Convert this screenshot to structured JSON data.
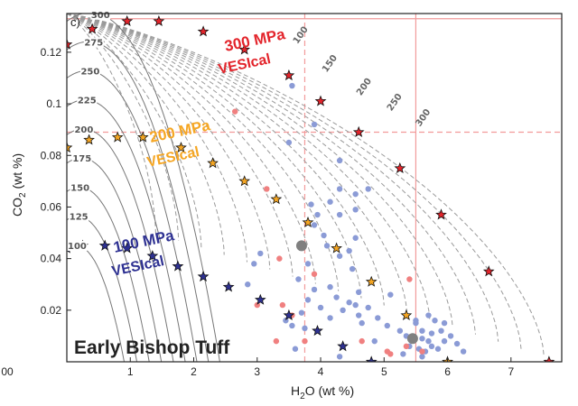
{
  "chart_data": {
    "type": "scatter",
    "panel_label": "c)",
    "title": "Early Bishop Tuff",
    "xlabel": {
      "main": "H",
      "sub": "2",
      "rest": "O (wt %)"
    },
    "ylabel": {
      "main": "CO",
      "sub": "2",
      "rest": " (wt %)"
    },
    "xlim": [
      0,
      7.8
    ],
    "ylim": [
      0,
      0.135
    ],
    "xticks": [
      0,
      1,
      2,
      3,
      4,
      5,
      6,
      7
    ],
    "xtick_labels": [
      "00",
      "1",
      "2",
      "3",
      "4",
      "5",
      "6",
      "7"
    ],
    "yticks": [
      0.02,
      0.04,
      0.06,
      0.08,
      0.1,
      0.12
    ],
    "ytick_labels": [
      "0.02",
      "0.04",
      "0.06",
      "0.08",
      "0.1",
      "0.12"
    ],
    "isobars": [
      {
        "label": "100",
        "P": 100
      },
      {
        "label": "125",
        "P": 125
      },
      {
        "label": "150",
        "P": 150
      },
      {
        "label": "175",
        "P": 175
      },
      {
        "label": "200",
        "P": 200
      },
      {
        "label": "225",
        "P": 225
      },
      {
        "label": "250",
        "P": 250
      },
      {
        "label": "275",
        "P": 275
      },
      {
        "label": "300",
        "P": 300
      }
    ],
    "isopleth_labels": [
      "100",
      "150",
      "200",
      "250",
      "300"
    ],
    "vesical_series": [
      {
        "name": "300 MPa",
        "name2": "VESIcal",
        "color": "#e3242b",
        "points": [
          [
            0.0,
            0.123
          ],
          [
            0.4,
            0.129
          ],
          [
            0.95,
            0.132
          ],
          [
            1.45,
            0.132
          ],
          [
            2.15,
            0.128
          ],
          [
            2.8,
            0.121
          ],
          [
            3.5,
            0.111
          ],
          [
            4.0,
            0.101
          ],
          [
            4.6,
            0.089
          ],
          [
            5.25,
            0.075
          ],
          [
            5.9,
            0.057
          ],
          [
            6.65,
            0.035
          ],
          [
            7.6,
            0.0
          ]
        ]
      },
      {
        "name": "200 MPa",
        "name2": "VESIcal",
        "color": "#f5a623",
        "points": [
          [
            0.0,
            0.083
          ],
          [
            0.35,
            0.086
          ],
          [
            0.8,
            0.087
          ],
          [
            1.2,
            0.087
          ],
          [
            1.8,
            0.083
          ],
          [
            2.3,
            0.077
          ],
          [
            2.8,
            0.07
          ],
          [
            3.3,
            0.063
          ],
          [
            3.8,
            0.054
          ],
          [
            4.25,
            0.044
          ],
          [
            4.8,
            0.031
          ],
          [
            5.35,
            0.018
          ],
          [
            6.0,
            0.0
          ]
        ]
      },
      {
        "name": "100 MPa",
        "name2": "VESIcal",
        "color": "#2e3192",
        "points": [
          [
            0.0,
            0.044
          ],
          [
            0.25,
            0.045
          ],
          [
            0.6,
            0.045
          ],
          [
            0.95,
            0.044
          ],
          [
            1.35,
            0.041
          ],
          [
            1.75,
            0.037
          ],
          [
            2.15,
            0.033
          ],
          [
            2.55,
            0.029
          ],
          [
            3.05,
            0.024
          ],
          [
            3.5,
            0.018
          ],
          [
            3.95,
            0.012
          ],
          [
            4.35,
            0.006
          ],
          [
            4.8,
            0.0
          ]
        ]
      }
    ],
    "melt_inclusions_blue": {
      "color": "#8b9bd6",
      "points": [
        [
          3.5,
          0.085
        ],
        [
          3.55,
          0.107
        ],
        [
          3.9,
          0.092
        ],
        [
          4.3,
          0.078
        ],
        [
          3.85,
          0.061
        ],
        [
          3.95,
          0.057
        ],
        [
          4.15,
          0.062
        ],
        [
          4.3,
          0.057
        ],
        [
          4.55,
          0.059
        ],
        [
          4.55,
          0.065
        ],
        [
          4.75,
          0.067
        ],
        [
          4.3,
          0.067
        ],
        [
          3.9,
          0.053
        ],
        [
          4.05,
          0.049
        ],
        [
          4.1,
          0.045
        ],
        [
          4.45,
          0.043
        ],
        [
          4.55,
          0.048
        ],
        [
          3.8,
          0.038
        ],
        [
          4.3,
          0.041
        ],
        [
          4.5,
          0.036
        ],
        [
          3.9,
          0.028
        ],
        [
          4.15,
          0.029
        ],
        [
          4.25,
          0.025
        ],
        [
          4.45,
          0.023
        ],
        [
          4.6,
          0.027
        ],
        [
          4.6,
          0.018
        ],
        [
          4.75,
          0.021
        ],
        [
          3.8,
          0.024
        ],
        [
          3.7,
          0.019
        ],
        [
          4.0,
          0.021
        ],
        [
          4.15,
          0.017
        ],
        [
          4.35,
          0.02
        ],
        [
          4.55,
          0.022
        ],
        [
          4.65,
          0.015
        ],
        [
          4.9,
          0.017
        ],
        [
          5.1,
          0.026
        ],
        [
          3.45,
          0.016
        ],
        [
          3.55,
          0.014
        ],
        [
          3.75,
          0.013
        ],
        [
          4.85,
          0.008
        ],
        [
          5.05,
          0.014
        ],
        [
          5.25,
          0.012
        ],
        [
          5.35,
          0.01
        ],
        [
          5.5,
          0.015
        ],
        [
          5.6,
          0.012
        ],
        [
          5.7,
          0.018
        ],
        [
          5.8,
          0.016
        ],
        [
          5.9,
          0.012
        ],
        [
          5.95,
          0.008
        ],
        [
          5.4,
          0.006
        ],
        [
          5.55,
          0.005
        ],
        [
          5.65,
          0.004
        ],
        [
          5.75,
          0.006
        ],
        [
          5.85,
          0.005
        ],
        [
          6.05,
          0.01
        ],
        [
          6.15,
          0.007
        ],
        [
          6.25,
          0.004
        ],
        [
          5.5,
          0.016
        ],
        [
          5.6,
          0.009
        ],
        [
          5.75,
          0.011
        ],
        [
          5.95,
          0.015
        ],
        [
          2.95,
          0.038
        ],
        [
          3.05,
          0.042
        ],
        [
          2.85,
          0.03
        ],
        [
          3.65,
          0.032
        ],
        [
          5.3,
          0.003
        ],
        [
          3.6,
          0.005
        ],
        [
          4.3,
          0.002
        ],
        [
          5.6,
          0.002
        ],
        [
          5.7,
          0.008
        ]
      ]
    },
    "melt_inclusions_pink": {
      "color": "#f08080",
      "points": [
        [
          2.65,
          0.097
        ],
        [
          3.15,
          0.067
        ],
        [
          3.35,
          0.04
        ],
        [
          3.9,
          0.034
        ],
        [
          5.4,
          0.032
        ],
        [
          3.4,
          0.022
        ],
        [
          3.0,
          0.022
        ],
        [
          3.55,
          0.018
        ],
        [
          3.3,
          0.008
        ],
        [
          3.75,
          0.008
        ],
        [
          4.65,
          0.008
        ],
        [
          5.35,
          0.006
        ],
        [
          5.05,
          0.004
        ],
        [
          5.1,
          0.003
        ],
        [
          5.6,
          0.004
        ]
      ]
    },
    "grey_points": [
      [
        3.7,
        0.045
      ],
      [
        5.45,
        0.009
      ]
    ],
    "reference_lines": {
      "color": "#f29a9a",
      "vertical_dashed_x": 3.75,
      "vertical_solid_x": 5.5,
      "horizontal_dashed_y": 0.089,
      "horizontal_solid_y": 0.133
    }
  }
}
